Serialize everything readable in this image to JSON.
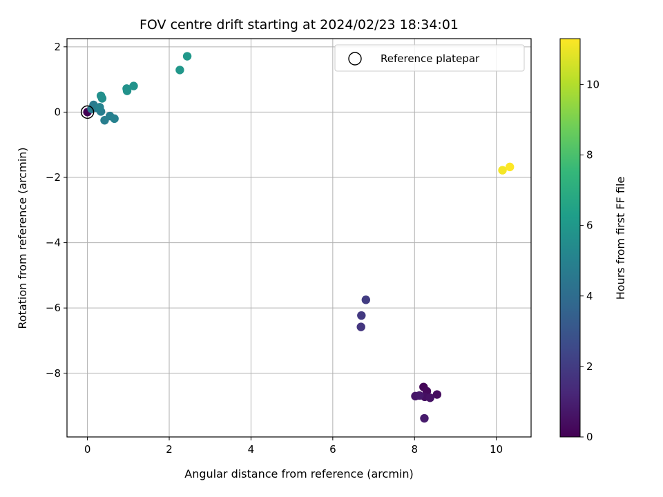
{
  "chart_data": {
    "type": "scatter",
    "title": "FOV centre drift starting at 2024/02/23 18:34:01",
    "xlabel": "Angular distance from reference (arcmin)",
    "ylabel": "Rotation from reference (arcmin)",
    "xlim": [
      -0.5,
      10.85
    ],
    "ylim": [
      -9.95,
      2.25
    ],
    "xticks": [
      0,
      2,
      4,
      6,
      8,
      10
    ],
    "yticks": [
      2,
      0,
      -2,
      -4,
      -6,
      -8
    ],
    "grid": true,
    "legend": {
      "placement": "top-right",
      "entries": [
        "Reference platepar"
      ]
    },
    "reference": {
      "x": 0,
      "y": 0
    },
    "colorbar": {
      "label": "Hours from first FF file",
      "range": [
        0,
        11.3
      ],
      "ticks": [
        0,
        2,
        4,
        6,
        8,
        10
      ],
      "colormap": "viridis",
      "stops": [
        "#440154",
        "#482878",
        "#3e4989",
        "#31688e",
        "#26828e",
        "#1f9e89",
        "#35b779",
        "#6ece58",
        "#b5de2b",
        "#fde725"
      ]
    },
    "points": [
      {
        "x": 0.0,
        "y": 0.0,
        "c": 0.0
      },
      {
        "x": 8.22,
        "y": -8.42,
        "c": 0.15
      },
      {
        "x": 8.3,
        "y": -8.55,
        "c": 0.25
      },
      {
        "x": 8.55,
        "y": -8.65,
        "c": 0.35
      },
      {
        "x": 8.25,
        "y": -8.72,
        "c": 0.45
      },
      {
        "x": 8.38,
        "y": -8.75,
        "c": 0.55
      },
      {
        "x": 8.02,
        "y": -8.7,
        "c": 0.65
      },
      {
        "x": 8.12,
        "y": -8.68,
        "c": 0.75
      },
      {
        "x": 8.24,
        "y": -9.38,
        "c": 0.85
      },
      {
        "x": 6.69,
        "y": -6.58,
        "c": 1.8
      },
      {
        "x": 6.7,
        "y": -6.23,
        "c": 1.9
      },
      {
        "x": 6.81,
        "y": -5.75,
        "c": 2.0
      },
      {
        "x": 0.1,
        "y": 0.1,
        "c": 4.65
      },
      {
        "x": 0.15,
        "y": 0.22,
        "c": 4.7
      },
      {
        "x": 0.25,
        "y": 0.12,
        "c": 4.75
      },
      {
        "x": 0.33,
        "y": 0.02,
        "c": 4.8
      },
      {
        "x": 0.42,
        "y": -0.25,
        "c": 4.85
      },
      {
        "x": 0.55,
        "y": -0.12,
        "c": 4.9
      },
      {
        "x": 0.66,
        "y": -0.2,
        "c": 4.95
      },
      {
        "x": 0.3,
        "y": 0.15,
        "c": 5.0
      },
      {
        "x": 0.36,
        "y": 0.42,
        "c": 5.6
      },
      {
        "x": 0.33,
        "y": 0.5,
        "c": 5.65
      },
      {
        "x": 0.97,
        "y": 0.65,
        "c": 5.7
      },
      {
        "x": 0.96,
        "y": 0.72,
        "c": 5.75
      },
      {
        "x": 1.13,
        "y": 0.8,
        "c": 5.8
      },
      {
        "x": 2.26,
        "y": 1.29,
        "c": 5.95
      },
      {
        "x": 2.44,
        "y": 1.71,
        "c": 6.0
      },
      {
        "x": 10.15,
        "y": -1.78,
        "c": 11.15
      },
      {
        "x": 10.33,
        "y": -1.68,
        "c": 11.3
      }
    ]
  }
}
